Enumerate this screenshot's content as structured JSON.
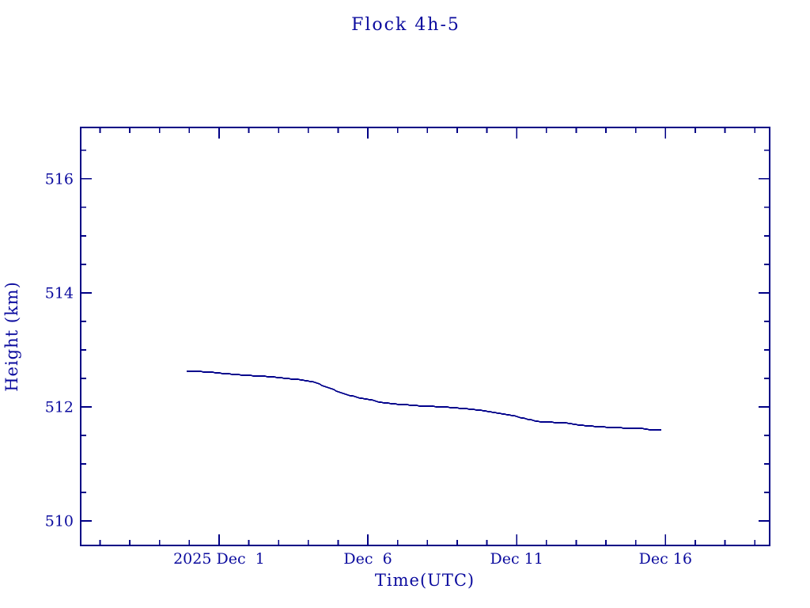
{
  "window": {
    "background": "#ffffff"
  },
  "colors": {
    "axis_line": "#000085",
    "series_line": "#00008B",
    "text": "#0b0b9e",
    "background": "#ffffff"
  },
  "chart_data": {
    "type": "line",
    "title": "Flock 4h-5",
    "xlabel": "Time(UTC)",
    "ylabel": "Height (km)",
    "x_axis_note": "days of December 2025 (Dec 1 = 1; 0 = Nov 30, negative = late Nov)",
    "x_range": [
      -3.65,
      19.5
    ],
    "y_range": [
      509.57,
      516.9
    ],
    "x_major_ticks": [
      {
        "x": 1,
        "label": "2025 Dec  1"
      },
      {
        "x": 6,
        "label": "Dec  6"
      },
      {
        "x": 11,
        "label": "Dec 11"
      },
      {
        "x": 16,
        "label": "Dec 16"
      }
    ],
    "x_minor_step_days": 1,
    "y_major_ticks": [
      {
        "v": 510,
        "label": "510"
      },
      {
        "v": 512,
        "label": "512"
      },
      {
        "v": 514,
        "label": "514"
      },
      {
        "v": 516,
        "label": "516"
      }
    ],
    "y_minor_step_km": 0.5,
    "grid": "off",
    "legend": "none",
    "series": [
      {
        "name": "Flock 4h-5 height",
        "points": [
          [
            -0.09,
            512.63
          ],
          [
            0.55,
            512.615
          ],
          [
            1.61,
            512.565
          ],
          [
            2.67,
            512.53
          ],
          [
            3.74,
            512.475
          ],
          [
            4.21,
            512.43
          ],
          [
            4.8,
            512.31
          ],
          [
            5.14,
            512.235
          ],
          [
            5.86,
            512.14
          ],
          [
            6.13,
            512.125
          ],
          [
            6.39,
            512.08
          ],
          [
            6.92,
            512.05
          ],
          [
            7.72,
            512.02
          ],
          [
            8.52,
            512.0
          ],
          [
            9.58,
            511.955
          ],
          [
            10.37,
            511.89
          ],
          [
            10.9,
            511.845
          ],
          [
            11.3,
            511.79
          ],
          [
            11.78,
            511.74
          ],
          [
            12.63,
            511.72
          ],
          [
            13.29,
            511.67
          ],
          [
            13.82,
            511.65
          ],
          [
            14.62,
            511.63
          ],
          [
            15.15,
            511.625
          ],
          [
            15.47,
            511.6
          ],
          [
            15.87,
            511.597
          ]
        ]
      }
    ]
  }
}
